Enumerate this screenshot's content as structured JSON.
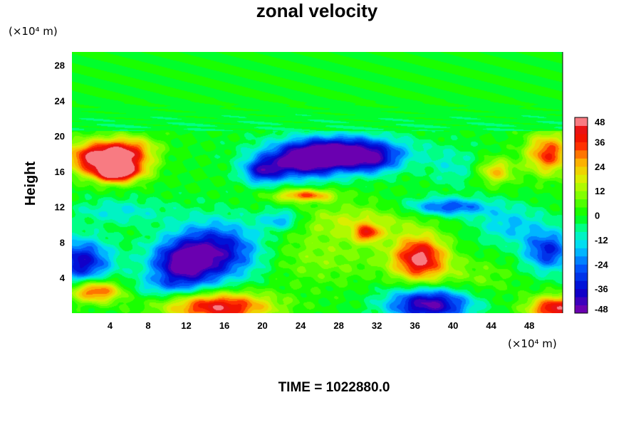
{
  "chart_data": {
    "type": "heatmap",
    "title": "zonal velocity",
    "xlabel": "",
    "ylabel": "Height",
    "x_unit": "(×10⁴ m)",
    "y_unit": "(×10⁴ m)",
    "xlim": [
      0,
      51.5
    ],
    "ylim": [
      0,
      29.5
    ],
    "x_ticks": [
      4,
      8,
      12,
      16,
      20,
      24,
      28,
      32,
      36,
      40,
      44,
      48
    ],
    "y_ticks": [
      4,
      8,
      12,
      16,
      20,
      24,
      28
    ],
    "colorbar": {
      "min": -48,
      "max": 48,
      "step": 4,
      "ticks": [
        48,
        36,
        24,
        12,
        0,
        -12,
        -24,
        -36,
        -48
      ]
    },
    "features": [
      {
        "x": 2.5,
        "y": 17.5,
        "sx": 2.2,
        "sy": 1.3,
        "value": 46
      },
      {
        "x": 4.5,
        "y": 15.8,
        "sx": 1.5,
        "sy": 0.8,
        "value": 40
      },
      {
        "x": 6.0,
        "y": 18.5,
        "sx": 2.0,
        "sy": 1.0,
        "value": 30
      },
      {
        "x": 6.5,
        "y": 16.5,
        "sx": 1.6,
        "sy": 1.0,
        "value": 22
      },
      {
        "x": 28.0,
        "y": 18.3,
        "sx": 4.5,
        "sy": 1.2,
        "value": -48
      },
      {
        "x": 24.5,
        "y": 16.8,
        "sx": 3.0,
        "sy": 1.2,
        "value": -38
      },
      {
        "x": 20.0,
        "y": 16.0,
        "sx": 1.5,
        "sy": 1.0,
        "value": -30
      },
      {
        "x": 31.5,
        "y": 17.0,
        "sx": 2.0,
        "sy": 1.0,
        "value": -22
      },
      {
        "x": 24.5,
        "y": 13.3,
        "sx": 2.2,
        "sy": 0.5,
        "value": 32
      },
      {
        "x": 36.5,
        "y": 6.2,
        "sx": 2.0,
        "sy": 1.8,
        "value": 46
      },
      {
        "x": 15.5,
        "y": 0.7,
        "sx": 3.8,
        "sy": 1.2,
        "value": 44
      },
      {
        "x": 50.8,
        "y": 0.5,
        "sx": 2.0,
        "sy": 1.0,
        "value": 44
      },
      {
        "x": 2.5,
        "y": 2.5,
        "sx": 2.0,
        "sy": 0.9,
        "value": 38
      },
      {
        "x": 50.0,
        "y": 18.0,
        "sx": 1.6,
        "sy": 1.6,
        "value": 36
      },
      {
        "x": 15.0,
        "y": 7.0,
        "sx": 3.5,
        "sy": 2.3,
        "value": -40
      },
      {
        "x": 11.5,
        "y": 5.5,
        "sx": 2.3,
        "sy": 1.6,
        "value": -34
      },
      {
        "x": 1.0,
        "y": 5.8,
        "sx": 2.2,
        "sy": 1.8,
        "value": -38
      },
      {
        "x": 37.5,
        "y": 1.0,
        "sx": 3.0,
        "sy": 1.3,
        "value": -46
      },
      {
        "x": 50.0,
        "y": 7.0,
        "sx": 1.8,
        "sy": 1.6,
        "value": -32
      },
      {
        "x": 39.5,
        "y": 12.0,
        "sx": 3.0,
        "sy": 0.7,
        "value": -28
      },
      {
        "x": 30.0,
        "y": 10.5,
        "sx": 4.5,
        "sy": 1.3,
        "value": 14
      },
      {
        "x": 26.0,
        "y": 6.5,
        "sx": 5.0,
        "sy": 2.2,
        "value": 10
      },
      {
        "x": 44.5,
        "y": 16.0,
        "sx": 1.3,
        "sy": 1.0,
        "value": 24
      },
      {
        "x": 31.0,
        "y": 9.0,
        "sx": 1.0,
        "sy": 0.7,
        "value": 30
      },
      {
        "x": 22.0,
        "y": 10.5,
        "sx": 1.5,
        "sy": 0.8,
        "value": -20
      },
      {
        "x": 10.0,
        "y": 3.0,
        "sx": 3.0,
        "sy": 0.9,
        "value": -14
      },
      {
        "x": 46.0,
        "y": 10.0,
        "sx": 2.5,
        "sy": 1.5,
        "value": -16
      },
      {
        "x": 42.0,
        "y": 4.0,
        "sx": 3.0,
        "sy": 1.5,
        "value": 8
      },
      {
        "x": 5.0,
        "y": 11.5,
        "sx": 3.5,
        "sy": 1.0,
        "value": -12
      },
      {
        "x": 40.0,
        "y": 16.5,
        "sx": 2.0,
        "sy": 1.5,
        "value": -10
      }
    ]
  },
  "time_label": "TIME = 1022880.0"
}
